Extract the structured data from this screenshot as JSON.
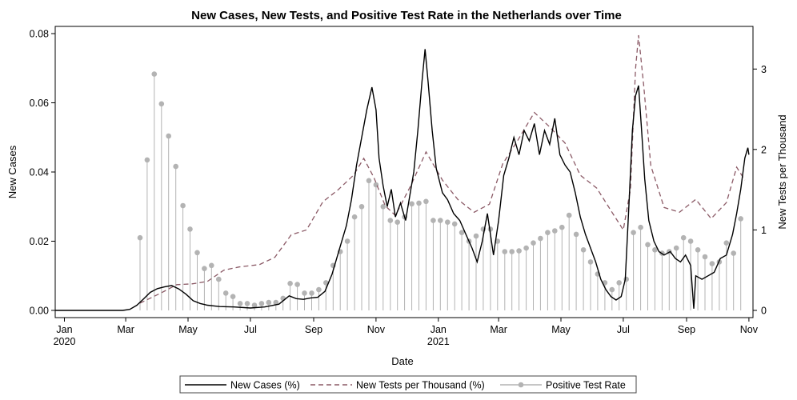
{
  "chart_data": {
    "type": "line",
    "title": "New Cases, New Tests, and Positive Test Rate in the Netherlands over Time",
    "xlabel": "Date",
    "ylabel_left": "New Cases",
    "ylabel_right": "New Tests per Thousand",
    "x_ticks": [
      {
        "date": "2020-01-01",
        "label": "Jan",
        "year": "2020"
      },
      {
        "date": "2020-03-01",
        "label": "Mar",
        "year": ""
      },
      {
        "date": "2020-05-01",
        "label": "May",
        "year": ""
      },
      {
        "date": "2020-07-01",
        "label": "Jul",
        "year": ""
      },
      {
        "date": "2020-09-01",
        "label": "Sep",
        "year": ""
      },
      {
        "date": "2020-11-01",
        "label": "Nov",
        "year": ""
      },
      {
        "date": "2021-01-01",
        "label": "Jan",
        "year": "2021"
      },
      {
        "date": "2021-03-01",
        "label": "Mar",
        "year": ""
      },
      {
        "date": "2021-05-01",
        "label": "May",
        "year": ""
      },
      {
        "date": "2021-07-01",
        "label": "Jul",
        "year": ""
      },
      {
        "date": "2021-09-01",
        "label": "Sep",
        "year": ""
      },
      {
        "date": "2021-11-01",
        "label": "Nov",
        "year": ""
      }
    ],
    "x_range": [
      "2019-12-23",
      "2021-11-05"
    ],
    "y_left": {
      "min": 0,
      "max": 0.08,
      "ticks": [
        0,
        0.02,
        0.04,
        0.06,
        0.08
      ],
      "tick_labels": [
        "0.00",
        "0.02",
        "0.04",
        "0.06",
        "0.08"
      ]
    },
    "y_right": {
      "min": 0,
      "max": 3.44,
      "ticks": [
        0,
        1,
        2,
        3
      ],
      "tick_labels": [
        "0",
        "1",
        "2",
        "3"
      ]
    },
    "series": [
      {
        "name": "New Cases (%)",
        "axis": "left",
        "style": "solid",
        "color": "#000000",
        "points": [
          [
            "2020-02-27",
            0
          ],
          [
            "2020-03-05",
            0.0003
          ],
          [
            "2020-03-12",
            0.0015
          ],
          [
            "2020-03-18",
            0.0032
          ],
          [
            "2020-03-25",
            0.0052
          ],
          [
            "2020-04-01",
            0.0063
          ],
          [
            "2020-04-08",
            0.0068
          ],
          [
            "2020-04-15",
            0.0072
          ],
          [
            "2020-04-22",
            0.0062
          ],
          [
            "2020-04-29",
            0.0047
          ],
          [
            "2020-05-06",
            0.0028
          ],
          [
            "2020-05-13",
            0.002
          ],
          [
            "2020-05-20",
            0.0015
          ],
          [
            "2020-06-01",
            0.0011
          ],
          [
            "2020-06-15",
            0.001
          ],
          [
            "2020-07-01",
            0.0007
          ],
          [
            "2020-07-15",
            0.001
          ],
          [
            "2020-07-29",
            0.0018
          ],
          [
            "2020-08-08",
            0.0042
          ],
          [
            "2020-08-15",
            0.0034
          ],
          [
            "2020-08-22",
            0.0032
          ],
          [
            "2020-08-29",
            0.0036
          ],
          [
            "2020-09-05",
            0.0038
          ],
          [
            "2020-09-12",
            0.0055
          ],
          [
            "2020-09-19",
            0.0105
          ],
          [
            "2020-09-26",
            0.0175
          ],
          [
            "2020-10-03",
            0.0245
          ],
          [
            "2020-10-08",
            0.032
          ],
          [
            "2020-10-13",
            0.042
          ],
          [
            "2020-10-18",
            0.05
          ],
          [
            "2020-10-23",
            0.058
          ],
          [
            "2020-10-28",
            0.0645
          ],
          [
            "2020-11-01",
            0.058
          ],
          [
            "2020-11-04",
            0.044
          ],
          [
            "2020-11-08",
            0.036
          ],
          [
            "2020-11-12",
            0.03
          ],
          [
            "2020-11-16",
            0.035
          ],
          [
            "2020-11-20",
            0.027
          ],
          [
            "2020-11-25",
            0.031
          ],
          [
            "2020-11-30",
            0.026
          ],
          [
            "2020-12-04",
            0.033
          ],
          [
            "2020-12-08",
            0.04
          ],
          [
            "2020-12-12",
            0.052
          ],
          [
            "2020-12-16",
            0.066
          ],
          [
            "2020-12-19",
            0.0755
          ],
          [
            "2020-12-22",
            0.066
          ],
          [
            "2020-12-26",
            0.052
          ],
          [
            "2020-12-30",
            0.041
          ],
          [
            "2021-01-05",
            0.034
          ],
          [
            "2021-01-10",
            0.032
          ],
          [
            "2021-01-16",
            0.028
          ],
          [
            "2021-01-22",
            0.026
          ],
          [
            "2021-01-28",
            0.022
          ],
          [
            "2021-02-03",
            0.018
          ],
          [
            "2021-02-08",
            0.014
          ],
          [
            "2021-02-13",
            0.02
          ],
          [
            "2021-02-18",
            0.028
          ],
          [
            "2021-02-24",
            0.016
          ],
          [
            "2021-03-01",
            0.026
          ],
          [
            "2021-03-06",
            0.039
          ],
          [
            "2021-03-11",
            0.044
          ],
          [
            "2021-03-16",
            0.05
          ],
          [
            "2021-03-21",
            0.045
          ],
          [
            "2021-03-26",
            0.052
          ],
          [
            "2021-03-31",
            0.049
          ],
          [
            "2021-04-05",
            0.054
          ],
          [
            "2021-04-10",
            0.045
          ],
          [
            "2021-04-15",
            0.052
          ],
          [
            "2021-04-20",
            0.048
          ],
          [
            "2021-04-25",
            0.0555
          ],
          [
            "2021-04-30",
            0.045
          ],
          [
            "2021-05-05",
            0.042
          ],
          [
            "2021-05-10",
            0.04
          ],
          [
            "2021-05-15",
            0.034
          ],
          [
            "2021-05-20",
            0.027
          ],
          [
            "2021-05-25",
            0.022
          ],
          [
            "2021-05-30",
            0.018
          ],
          [
            "2021-06-04",
            0.014
          ],
          [
            "2021-06-09",
            0.009
          ],
          [
            "2021-06-14",
            0.006
          ],
          [
            "2021-06-19",
            0.004
          ],
          [
            "2021-06-24",
            0.003
          ],
          [
            "2021-06-29",
            0.004
          ],
          [
            "2021-07-03",
            0.009
          ],
          [
            "2021-07-07",
            0.033
          ],
          [
            "2021-07-10",
            0.052
          ],
          [
            "2021-07-13",
            0.062
          ],
          [
            "2021-07-16",
            0.065
          ],
          [
            "2021-07-19",
            0.052
          ],
          [
            "2021-07-22",
            0.038
          ],
          [
            "2021-07-26",
            0.026
          ],
          [
            "2021-07-31",
            0.02
          ],
          [
            "2021-08-05",
            0.017
          ],
          [
            "2021-08-10",
            0.016
          ],
          [
            "2021-08-16",
            0.017
          ],
          [
            "2021-08-21",
            0.015
          ],
          [
            "2021-08-26",
            0.014
          ],
          [
            "2021-08-31",
            0.016
          ],
          [
            "2021-09-05",
            0.013
          ],
          [
            "2021-09-08",
            0.0005
          ],
          [
            "2021-09-10",
            0.01
          ],
          [
            "2021-09-16",
            0.009
          ],
          [
            "2021-09-22",
            0.01
          ],
          [
            "2021-09-28",
            0.011
          ],
          [
            "2021-10-04",
            0.015
          ],
          [
            "2021-10-10",
            0.016
          ],
          [
            "2021-10-16",
            0.022
          ],
          [
            "2021-10-20",
            0.028
          ],
          [
            "2021-10-24",
            0.035
          ],
          [
            "2021-10-28",
            0.044
          ],
          [
            "2021-10-31",
            0.047
          ],
          [
            "2021-11-01",
            0.045
          ]
        ]
      },
      {
        "name": "New Tests per Thousand (%)",
        "axis": "right",
        "style": "dashed",
        "color": "#8b5a66",
        "points": [
          [
            "2020-03-15",
            0.09
          ],
          [
            "2020-04-05",
            0.22
          ],
          [
            "2020-04-20",
            0.32
          ],
          [
            "2020-05-05",
            0.33
          ],
          [
            "2020-05-20",
            0.36
          ],
          [
            "2020-06-05",
            0.5
          ],
          [
            "2020-06-20",
            0.54
          ],
          [
            "2020-07-10",
            0.57
          ],
          [
            "2020-07-25",
            0.66
          ],
          [
            "2020-08-10",
            0.94
          ],
          [
            "2020-08-25",
            1.0
          ],
          [
            "2020-09-10",
            1.35
          ],
          [
            "2020-09-25",
            1.5
          ],
          [
            "2020-10-10",
            1.68
          ],
          [
            "2020-10-20",
            1.89
          ],
          [
            "2020-10-30",
            1.65
          ],
          [
            "2020-11-10",
            1.3
          ],
          [
            "2020-11-20",
            1.18
          ],
          [
            "2020-12-05",
            1.55
          ],
          [
            "2020-12-20",
            1.97
          ],
          [
            "2021-01-05",
            1.62
          ],
          [
            "2021-01-20",
            1.38
          ],
          [
            "2021-02-05",
            1.22
          ],
          [
            "2021-02-20",
            1.32
          ],
          [
            "2021-03-05",
            1.82
          ],
          [
            "2021-03-20",
            2.12
          ],
          [
            "2021-04-05",
            2.46
          ],
          [
            "2021-04-20",
            2.28
          ],
          [
            "2021-05-05",
            2.08
          ],
          [
            "2021-05-20",
            1.68
          ],
          [
            "2021-06-05",
            1.52
          ],
          [
            "2021-06-20",
            1.22
          ],
          [
            "2021-07-01",
            1.0
          ],
          [
            "2021-07-08",
            1.5
          ],
          [
            "2021-07-13",
            3.0
          ],
          [
            "2021-07-16",
            3.42
          ],
          [
            "2021-07-21",
            2.8
          ],
          [
            "2021-07-28",
            1.8
          ],
          [
            "2021-08-10",
            1.28
          ],
          [
            "2021-08-25",
            1.22
          ],
          [
            "2021-09-10",
            1.38
          ],
          [
            "2021-09-25",
            1.14
          ],
          [
            "2021-10-10",
            1.34
          ],
          [
            "2021-10-20",
            1.78
          ],
          [
            "2021-10-28",
            1.62
          ]
        ]
      },
      {
        "name": "Positive Test Rate",
        "axis": "left",
        "style": "stem",
        "color": "#b3b3b3",
        "points": [
          [
            "2020-03-15",
            0.021
          ],
          [
            "2020-03-22",
            0.0435
          ],
          [
            "2020-03-29",
            0.0683
          ],
          [
            "2020-04-05",
            0.0597
          ],
          [
            "2020-04-12",
            0.0504
          ],
          [
            "2020-04-19",
            0.0416
          ],
          [
            "2020-04-26",
            0.0303
          ],
          [
            "2020-05-03",
            0.0235
          ],
          [
            "2020-05-10",
            0.0167
          ],
          [
            "2020-05-17",
            0.0121
          ],
          [
            "2020-05-24",
            0.013
          ],
          [
            "2020-05-31",
            0.009
          ],
          [
            "2020-06-07",
            0.005
          ],
          [
            "2020-06-14",
            0.004
          ],
          [
            "2020-06-21",
            0.002
          ],
          [
            "2020-06-28",
            0.002
          ],
          [
            "2020-07-05",
            0.0015
          ],
          [
            "2020-07-12",
            0.002
          ],
          [
            "2020-07-19",
            0.0023
          ],
          [
            "2020-07-26",
            0.0023
          ],
          [
            "2020-08-02",
            0.0035
          ],
          [
            "2020-08-09",
            0.0078
          ],
          [
            "2020-08-16",
            0.0075
          ],
          [
            "2020-08-23",
            0.005
          ],
          [
            "2020-08-30",
            0.005
          ],
          [
            "2020-09-06",
            0.006
          ],
          [
            "2020-09-13",
            0.008
          ],
          [
            "2020-09-20",
            0.013
          ],
          [
            "2020-09-27",
            0.017
          ],
          [
            "2020-10-04",
            0.02
          ],
          [
            "2020-10-11",
            0.027
          ],
          [
            "2020-10-18",
            0.03
          ],
          [
            "2020-10-25",
            0.0375
          ],
          [
            "2020-11-01",
            0.0363
          ],
          [
            "2020-11-08",
            0.03
          ],
          [
            "2020-11-15",
            0.026
          ],
          [
            "2020-11-22",
            0.0255
          ],
          [
            "2020-11-29",
            0.027
          ],
          [
            "2020-12-06",
            0.0308
          ],
          [
            "2020-12-13",
            0.031
          ],
          [
            "2020-12-20",
            0.0315
          ],
          [
            "2020-12-27",
            0.026
          ],
          [
            "2021-01-03",
            0.026
          ],
          [
            "2021-01-10",
            0.0255
          ],
          [
            "2021-01-17",
            0.025
          ],
          [
            "2021-01-24",
            0.0225
          ],
          [
            "2021-01-31",
            0.02
          ],
          [
            "2021-02-07",
            0.0215
          ],
          [
            "2021-02-14",
            0.0235
          ],
          [
            "2021-02-21",
            0.0235
          ],
          [
            "2021-02-28",
            0.02
          ],
          [
            "2021-03-07",
            0.017
          ],
          [
            "2021-03-14",
            0.017
          ],
          [
            "2021-03-21",
            0.0172
          ],
          [
            "2021-03-28",
            0.018
          ],
          [
            "2021-04-04",
            0.0195
          ],
          [
            "2021-04-11",
            0.0208
          ],
          [
            "2021-04-18",
            0.0225
          ],
          [
            "2021-04-25",
            0.023
          ],
          [
            "2021-05-02",
            0.024
          ],
          [
            "2021-05-09",
            0.0275
          ],
          [
            "2021-05-16",
            0.022
          ],
          [
            "2021-05-23",
            0.0175
          ],
          [
            "2021-05-30",
            0.014
          ],
          [
            "2021-06-06",
            0.0105
          ],
          [
            "2021-06-13",
            0.008
          ],
          [
            "2021-06-20",
            0.006
          ],
          [
            "2021-06-27",
            0.008
          ],
          [
            "2021-07-04",
            0.009
          ],
          [
            "2021-07-11",
            0.0225
          ],
          [
            "2021-07-18",
            0.024
          ],
          [
            "2021-07-25",
            0.019
          ],
          [
            "2021-08-01",
            0.0175
          ],
          [
            "2021-08-08",
            0.0165
          ],
          [
            "2021-08-15",
            0.017
          ],
          [
            "2021-08-22",
            0.018
          ],
          [
            "2021-08-29",
            0.021
          ],
          [
            "2021-09-05",
            0.02
          ],
          [
            "2021-09-12",
            0.0175
          ],
          [
            "2021-09-19",
            0.0155
          ],
          [
            "2021-09-26",
            0.0135
          ],
          [
            "2021-10-03",
            0.014
          ],
          [
            "2021-10-10",
            0.0195
          ],
          [
            "2021-10-17",
            0.0165
          ],
          [
            "2021-10-24",
            0.0265
          ]
        ]
      }
    ],
    "legend": {
      "placement": "bottom",
      "items": [
        {
          "label": "New Cases (%)",
          "style": "solid"
        },
        {
          "label": "New Tests per Thousand (%)",
          "style": "dashed"
        },
        {
          "label": "Positive Test Rate",
          "style": "stem"
        }
      ]
    },
    "grid": false
  }
}
